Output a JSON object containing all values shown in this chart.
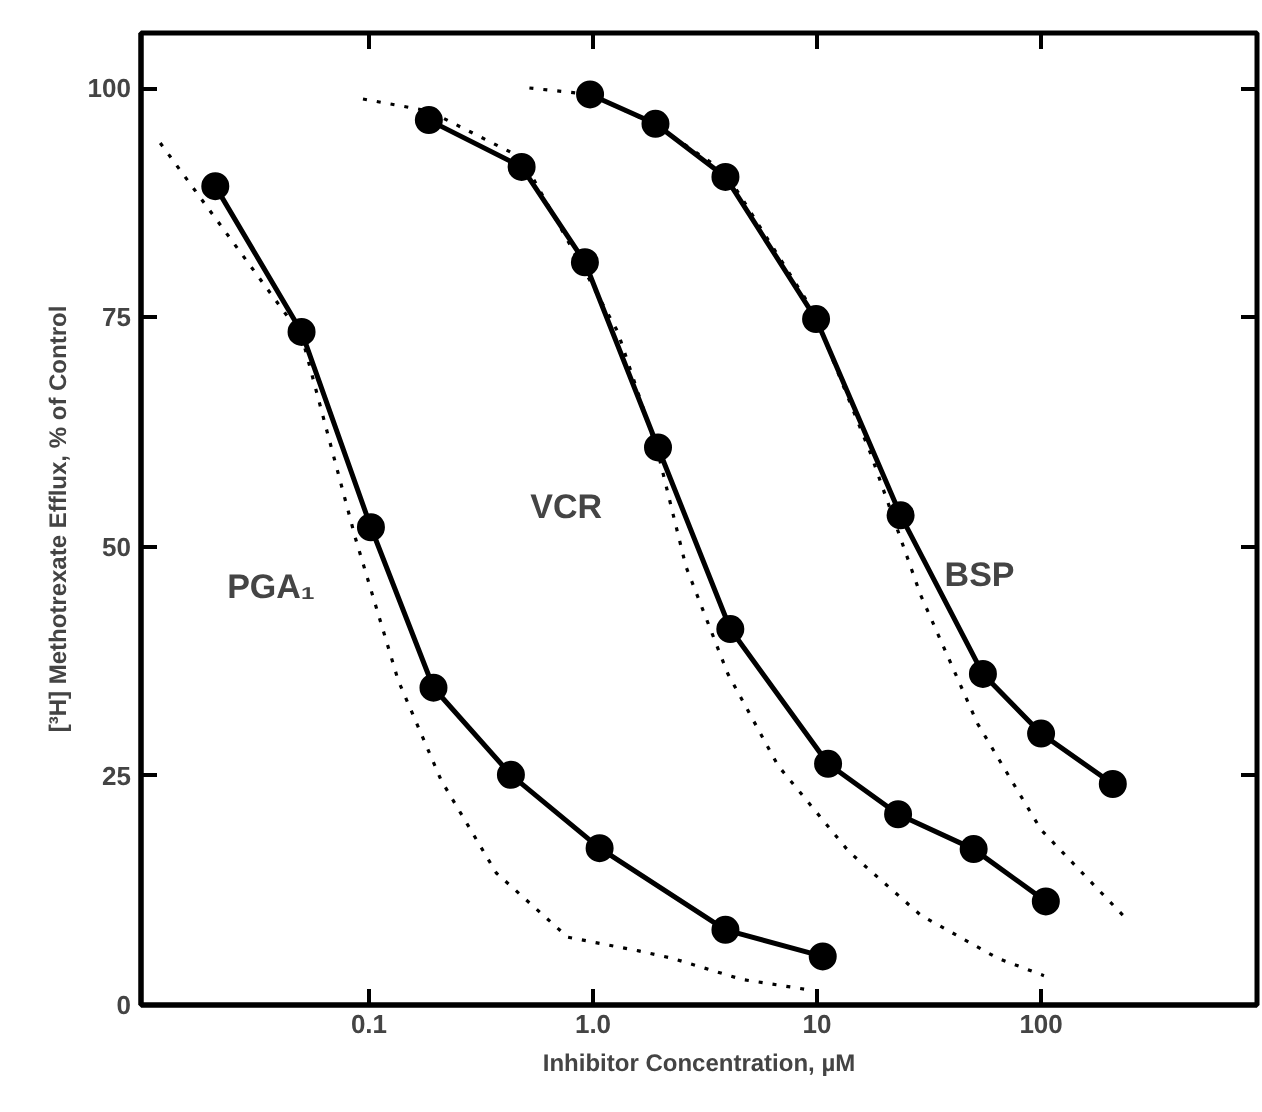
{
  "chart_data": {
    "type": "line",
    "xlabel": "Inhibitor Concentration, µM",
    "ylabel": "[³H] Methotrexate Efflux, % of Control",
    "log": "x",
    "xlim": [
      0.0096,
      920
    ],
    "ylim": [
      0,
      106
    ],
    "xticks": [
      {
        "value": 0.1,
        "label": "0.1"
      },
      {
        "value": 1,
        "label": "1.0"
      },
      10,
      100
    ],
    "yticks": [
      0,
      25,
      50,
      75,
      100
    ],
    "grid": false,
    "marker": "circle",
    "line_style": "solid",
    "series": [
      {
        "name": "PGA₁",
        "color": "#000000",
        "x": [
          0.0206,
          0.05,
          0.102,
          0.194,
          0.43,
          1.07,
          3.9,
          10.6
        ],
        "values": [
          89.3,
          73.4,
          52.1,
          34.6,
          25.1,
          17.1,
          8.2,
          5.3
        ]
      },
      {
        "name": "VCR",
        "color": "#000000",
        "x": [
          0.185,
          0.48,
          0.92,
          1.95,
          4.1,
          11.2,
          23,
          50,
          105
        ],
        "values": [
          96.5,
          91.4,
          81.0,
          60.8,
          41.0,
          26.3,
          20.8,
          17.0,
          11.3
        ]
      },
      {
        "name": "BSP",
        "color": "#000000",
        "x": [
          0.97,
          1.9,
          3.9,
          9.9,
          23.6,
          55,
          100,
          209
        ],
        "values": [
          99.3,
          96.1,
          90.3,
          74.8,
          53.4,
          36.1,
          29.6,
          24.1
        ]
      },
      {
        "color": "#000000",
        "marker": "none",
        "line_style": "dotted",
        "x": [
          0.0117,
          0.05,
          0.087,
          0.135,
          0.21,
          0.37,
          0.77,
          1.6,
          2.25,
          4.6,
          9.5
        ],
        "values": [
          94.0,
          73.0,
          50.9,
          35.4,
          24.5,
          14.4,
          7.4,
          5.9,
          5.1,
          2.8,
          1.6
        ]
      },
      {
        "color": "#000000",
        "marker": "none",
        "line_style": "dotted",
        "x": [
          0.094,
          0.185,
          0.48,
          0.92,
          1.29,
          1.95,
          2.6,
          4.0,
          6.7,
          13.9,
          29,
          64,
          103
        ],
        "values": [
          98.8,
          97.5,
          92.4,
          80.0,
          73.4,
          60.2,
          47.8,
          36.1,
          26.1,
          16.7,
          9.8,
          5.1,
          3.2
        ]
      },
      {
        "color": "#000000",
        "marker": "none",
        "line_style": "dotted",
        "x": [
          0.52,
          0.97,
          1.9,
          3.9,
          9.6,
          17.3,
          29,
          52,
          100,
          240
        ],
        "values": [
          100.0,
          99.3,
          96.0,
          90.8,
          75.7,
          60.2,
          44.7,
          30.7,
          19.1,
          9.4
        ]
      }
    ]
  }
}
